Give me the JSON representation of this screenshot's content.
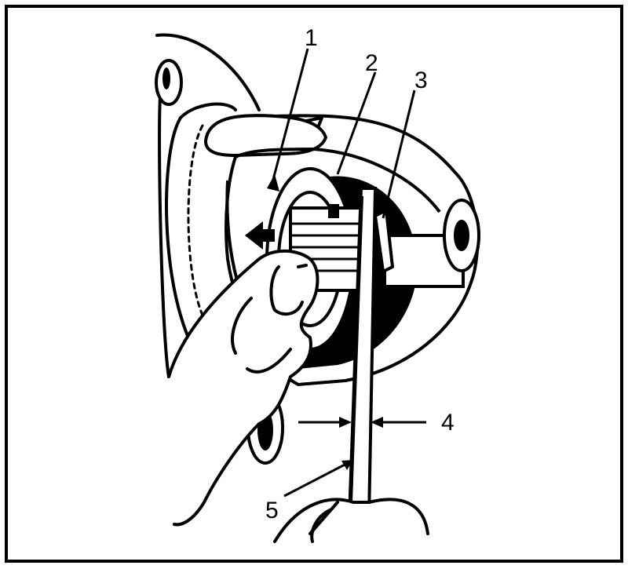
{
  "callouts": [
    {
      "id": "1",
      "label": "1"
    },
    {
      "id": "2",
      "label": "2"
    },
    {
      "id": "3",
      "label": "3"
    },
    {
      "id": "4",
      "label": "4"
    },
    {
      "id": "5",
      "label": "5"
    }
  ],
  "colors": {
    "ink": "#000000",
    "paper": "#ffffff"
  }
}
